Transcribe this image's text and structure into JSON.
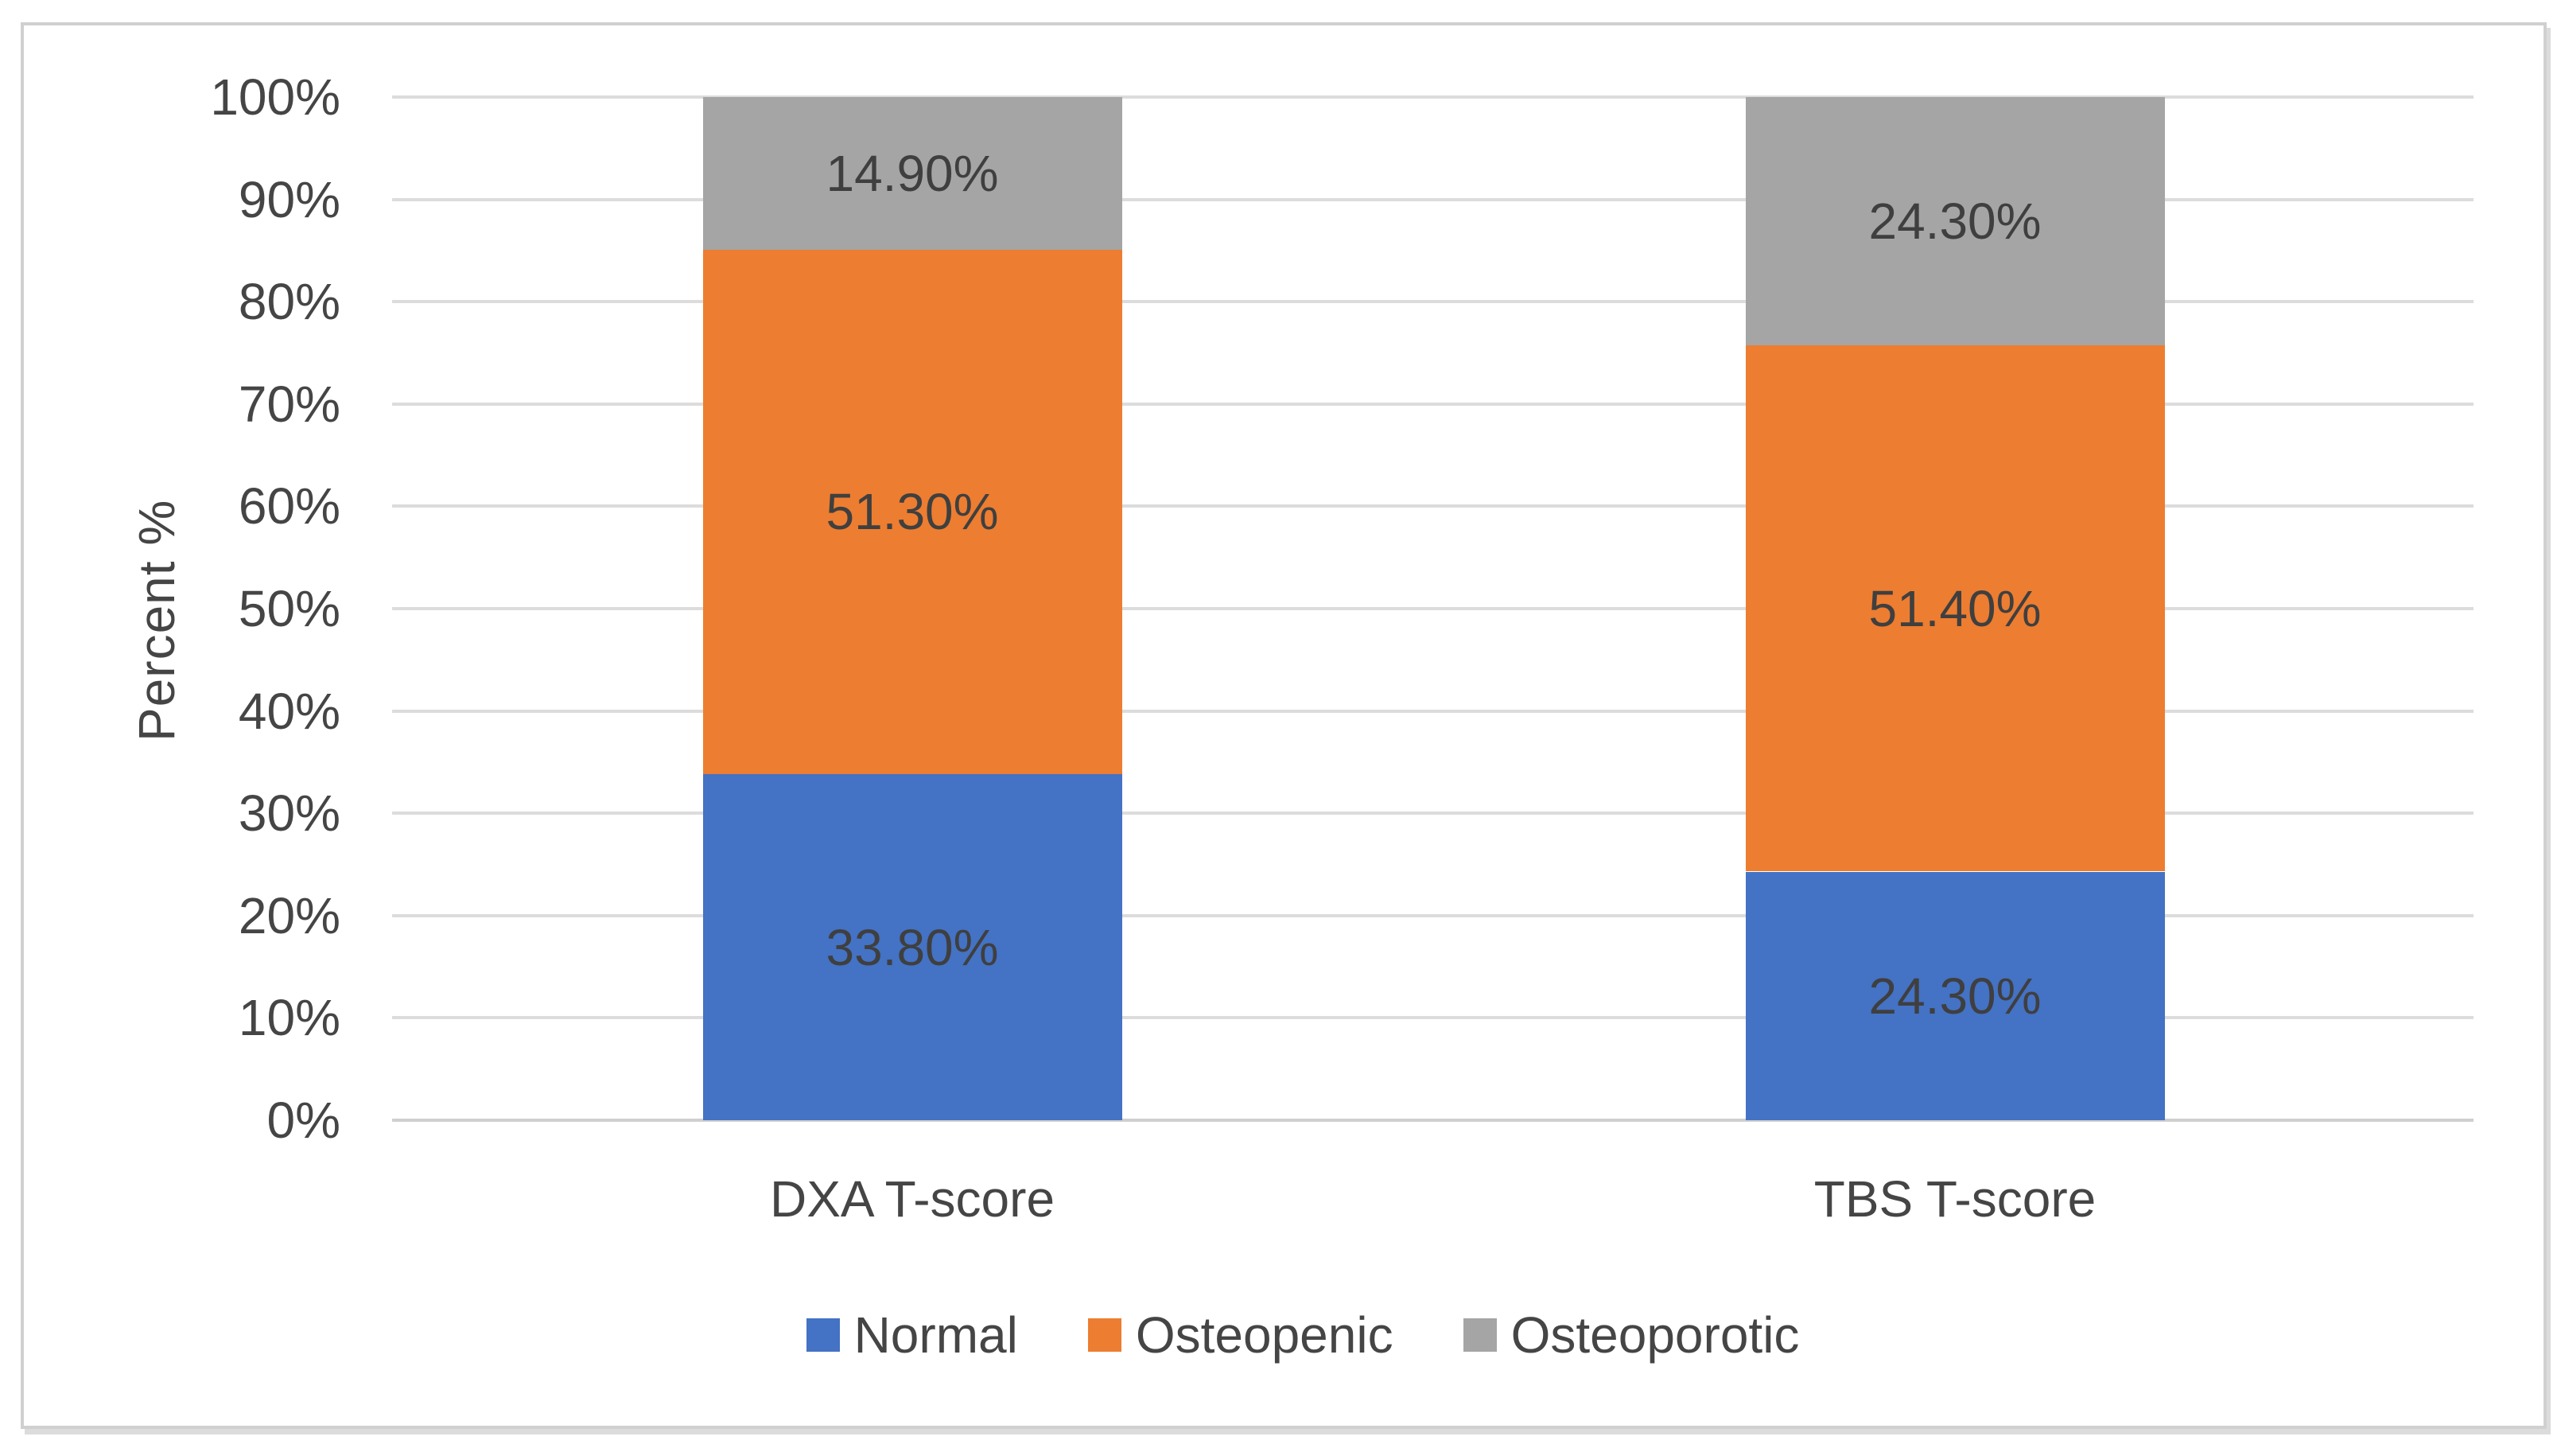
{
  "chart_data": {
    "type": "bar",
    "stacked": true,
    "title": "",
    "xlabel": "",
    "ylabel": "Percent %",
    "categories": [
      "DXA T-score",
      "TBS T-score"
    ],
    "series": [
      {
        "name": "Normal",
        "color": "#4472C4",
        "values": [
          33.8,
          24.3
        ],
        "labels": [
          "33.80%",
          "24.30%"
        ]
      },
      {
        "name": "Osteopenic",
        "color": "#ED7D31",
        "values": [
          51.3,
          51.4
        ],
        "labels": [
          "51.30%",
          "51.40%"
        ]
      },
      {
        "name": "Osteoporotic",
        "color": "#A5A5A5",
        "values": [
          14.9,
          24.3
        ],
        "labels": [
          "14.90%",
          "24.30%"
        ]
      }
    ],
    "y_axis": {
      "min": 0,
      "max": 100,
      "tick_step": 10,
      "tick_labels": [
        "0%",
        "10%",
        "20%",
        "30%",
        "40%",
        "50%",
        "60%",
        "70%",
        "80%",
        "90%",
        "100%"
      ]
    },
    "legend": {
      "position": "bottom",
      "entries": [
        "Normal",
        "Osteopenic",
        "Osteoporotic"
      ]
    },
    "grid": true,
    "gridline_color": "#dcdcdc",
    "axis_line_color": "#cfcfcf",
    "label_text_color": "#3f3f3f",
    "axis_text_color": "#454545"
  }
}
